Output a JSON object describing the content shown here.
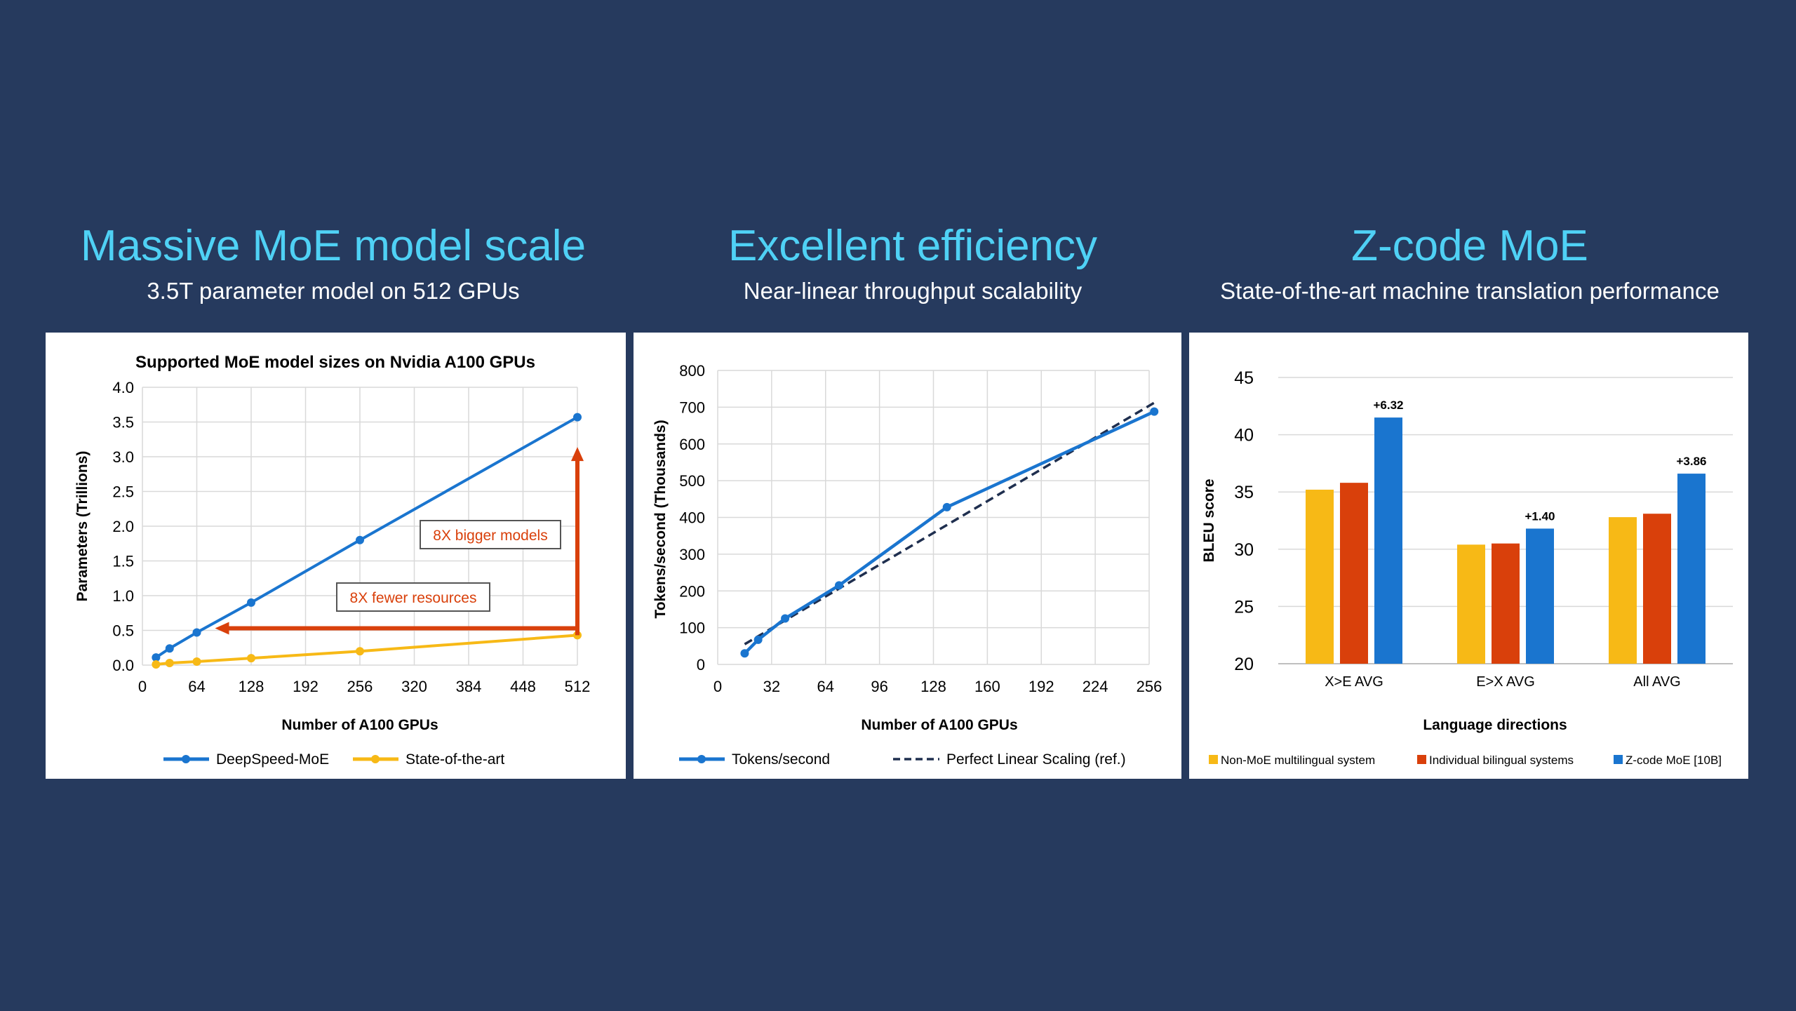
{
  "sections": [
    {
      "title": "Massive MoE model scale",
      "subtitle": "3.5T parameter model on 512 GPUs"
    },
    {
      "title": "Excellent efficiency",
      "subtitle": "Near-linear throughput scalability"
    },
    {
      "title": "Z-code MoE",
      "subtitle": "State-of-the-art machine translation performance"
    }
  ],
  "colors": {
    "background": "#263a5e",
    "title": "#4fd1f5",
    "blue": "#1a75cf",
    "yellow": "#f7b916",
    "orange": "#d9400b",
    "dark_dash": "#1f2f4f",
    "grid": "#d9d9d9"
  },
  "chart_data": [
    {
      "type": "line",
      "title": "Supported MoE model sizes on Nvidia A100 GPUs",
      "xlabel": "Number of A100 GPUs",
      "ylabel": "Parameters (Trillions)",
      "xlim": [
        0,
        512
      ],
      "ylim": [
        0,
        4.0
      ],
      "xticks": [
        0,
        64,
        128,
        192,
        256,
        320,
        384,
        448,
        512
      ],
      "yticks": [
        "0.0",
        "0.5",
        "1.0",
        "1.5",
        "2.0",
        "2.5",
        "3.0",
        "3.5",
        "4.0"
      ],
      "series": [
        {
          "name": "DeepSpeed-MoE",
          "color": "#1a75cf",
          "x": [
            16,
            32,
            64,
            128,
            256,
            512
          ],
          "y": [
            0.11,
            0.24,
            0.47,
            0.9,
            1.8,
            3.57
          ]
        },
        {
          "name": "State-of-the-art",
          "color": "#f7b916",
          "x": [
            16,
            32,
            64,
            128,
            256,
            512
          ],
          "y": [
            0.01,
            0.03,
            0.05,
            0.1,
            0.2,
            0.43
          ]
        }
      ],
      "annotations": {
        "bigger": "8X bigger models",
        "fewer": "8X fewer resources"
      },
      "legend": "bottom"
    },
    {
      "type": "line",
      "xlabel": "Number of A100 GPUs",
      "ylabel": "Tokens/second (Thousands)",
      "xlim": [
        0,
        256
      ],
      "ylim": [
        0,
        800
      ],
      "xticks": [
        0,
        32,
        64,
        96,
        128,
        160,
        192,
        224,
        256
      ],
      "yticks": [
        0,
        100,
        200,
        300,
        400,
        500,
        600,
        700,
        800
      ],
      "series": [
        {
          "name": "Tokens/second",
          "color": "#1a75cf",
          "style": "solid",
          "x": [
            16,
            24,
            40,
            72,
            136,
            264
          ],
          "y": [
            30,
            67,
            125,
            215,
            428,
            688
          ]
        },
        {
          "name": "Perfect Linear Scaling (ref.)",
          "color": "#1f2f4f",
          "style": "dashed",
          "x": [
            16,
            264
          ],
          "y": [
            55,
            712
          ]
        }
      ],
      "legend": "bottom"
    },
    {
      "type": "bar",
      "xlabel": "Language directions",
      "ylabel": "BLEU score",
      "ylim": [
        20,
        45
      ],
      "yticks": [
        20,
        25,
        30,
        35,
        40,
        45
      ],
      "categories": [
        "X>E AVG",
        "E>X AVG",
        "All AVG"
      ],
      "series": [
        {
          "name": "Non-MoE multilingual system",
          "color": "#f7b916",
          "values": [
            35.2,
            30.4,
            32.8
          ]
        },
        {
          "name": "Individual bilingual systems",
          "color": "#d9400b",
          "values": [
            35.8,
            30.5,
            33.1
          ]
        },
        {
          "name": "Z-code MoE [10B]",
          "color": "#1a75cf",
          "values": [
            41.5,
            31.8,
            36.6
          ]
        }
      ],
      "data_labels": [
        "+6.32",
        "+1.40",
        "+3.86"
      ],
      "legend": "bottom"
    }
  ]
}
